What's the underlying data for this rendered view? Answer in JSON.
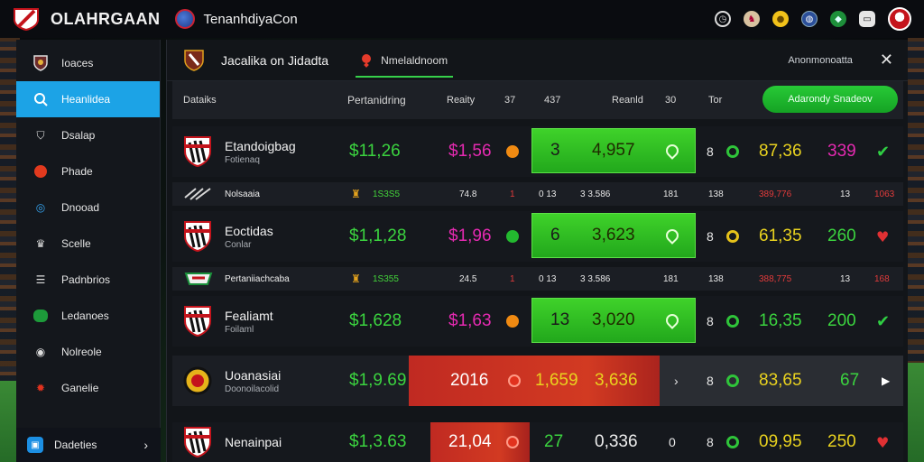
{
  "topbar": {
    "brand": "OLAHRGAAN",
    "site_name": "TenanhdiyaCon"
  },
  "sidebar": {
    "items": [
      {
        "label": "Ioaces",
        "icon": "club-crest-icon"
      },
      {
        "label": "Heanlidea",
        "icon": "search-icon",
        "active": true
      },
      {
        "label": "Dsalap",
        "icon": "shield-icon"
      },
      {
        "label": "Phade",
        "icon": "flame-icon"
      },
      {
        "label": "Dnooad",
        "icon": "swirl-icon"
      },
      {
        "label": "Scelle",
        "icon": "cup-icon"
      },
      {
        "label": "Padnbrios",
        "icon": "list-icon"
      },
      {
        "label": "Ledanoes",
        "icon": "badge-icon"
      },
      {
        "label": "Nolreole",
        "icon": "ball-icon"
      },
      {
        "label": "Ganelie",
        "icon": "gear-icon"
      }
    ],
    "bottom_label": "Dadeties"
  },
  "main": {
    "tab_title": "Jacalika on Jidadta",
    "tab_active": "Nmelaldnoom",
    "tab_right": "Anonmonoatta",
    "header": {
      "col1": "Dataiks",
      "col2": "Pertanidring",
      "col3": "Reaity",
      "col4": "37",
      "col5": "437",
      "col6": "Reanld",
      "col7": "30",
      "col8": "Tor",
      "cta": "Adarondy Snadeov"
    },
    "rows": [
      {
        "type": "big",
        "name": "Etandoigbag",
        "sub": "Fotienaq",
        "v1": "$11,26",
        "v2": "$1,56",
        "g1": "3",
        "g2": "4,957",
        "c1": "8",
        "y1": "87,36",
        "m1": "339",
        "end": "check"
      },
      {
        "type": "small",
        "name": "Nolsaaia",
        "v1": "1S3S5",
        "a": "74.8",
        "b": "1",
        "c": "0 13",
        "d": "3 3.586",
        "e": "181",
        "f": "138",
        "g": "389,776",
        "h": "13",
        "i": "1063"
      },
      {
        "type": "big",
        "name": "Eoctidas",
        "sub": "Conlar",
        "v1": "$1,1,28",
        "v2": "$1,96",
        "g1": "6",
        "g2": "3,623",
        "c1": "8",
        "y1": "61,35",
        "m1": "260",
        "end": "heart"
      },
      {
        "type": "small",
        "name": "Pertaniiachcaba",
        "v1": "1S355",
        "a": "24.5",
        "b": "1",
        "c": "0 13",
        "d": "3 3.586",
        "e": "181",
        "f": "138",
        "g": "388,775",
        "h": "13",
        "i": "168"
      },
      {
        "type": "big",
        "name": "Fealiamt",
        "sub": "Foilaml",
        "v1": "$1,628",
        "v2": "$1,63",
        "g1": "13",
        "g2": "3,020",
        "c1": "8",
        "y1": "16,35",
        "m1": "200",
        "end": "check"
      },
      {
        "type": "highlight",
        "name": "Uoanasiai",
        "sub": "Doonoilacolid",
        "v1": "$1,9.69",
        "r1": "2016",
        "r2": "1,659",
        "r3": "3,636",
        "c1": "8",
        "y1": "83,65",
        "m1": "67",
        "end": "arrow"
      },
      {
        "type": "big",
        "name": "Nenainpai",
        "sub": "",
        "v1": "$1,3.63",
        "r1": "21,04",
        "g1": "27",
        "w1": "0,336",
        "z1": "0",
        "c1": "8",
        "y1": "09,95",
        "m1": "250",
        "end": "heart"
      }
    ]
  },
  "colors": {
    "accent_blue": "#1ca3e6",
    "accent_green": "#2fcf43",
    "highlight_red": "#c02a22",
    "magenta": "#e52ab1",
    "yellow": "#e9d21f"
  }
}
